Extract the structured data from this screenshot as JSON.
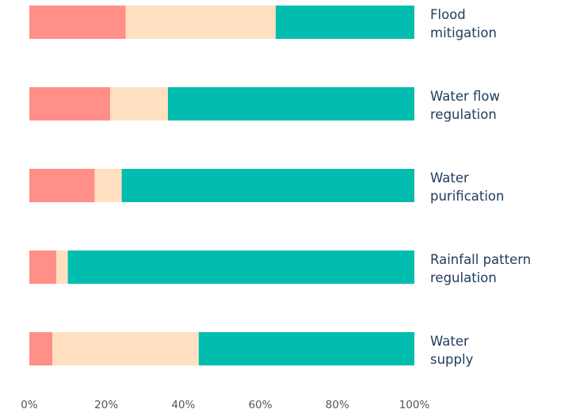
{
  "chart_data": {
    "type": "stacked_barh",
    "categories": [
      "Flood\nmitigation",
      "Water flow\nregulation",
      "Water\npurification",
      "Rainfall pattern\nregulation",
      "Water\nsupply"
    ],
    "series": [
      {
        "color": "#ff8f87",
        "values": [
          25,
          21,
          17,
          7,
          6
        ]
      },
      {
        "color": "#ffe0c0",
        "values": [
          39,
          15,
          7,
          3,
          38
        ]
      },
      {
        "color": "#00bdb0",
        "values": [
          36,
          64,
          76,
          90,
          56
        ]
      }
    ],
    "xlim": [
      0,
      100
    ],
    "xticks": [
      {
        "value": 0,
        "label": "0%"
      },
      {
        "value": 20,
        "label": "20%"
      },
      {
        "value": 40,
        "label": "40%"
      },
      {
        "value": 60,
        "label": "60%"
      },
      {
        "value": 80,
        "label": "80%"
      },
      {
        "value": 100,
        "label": "100%"
      }
    ]
  }
}
